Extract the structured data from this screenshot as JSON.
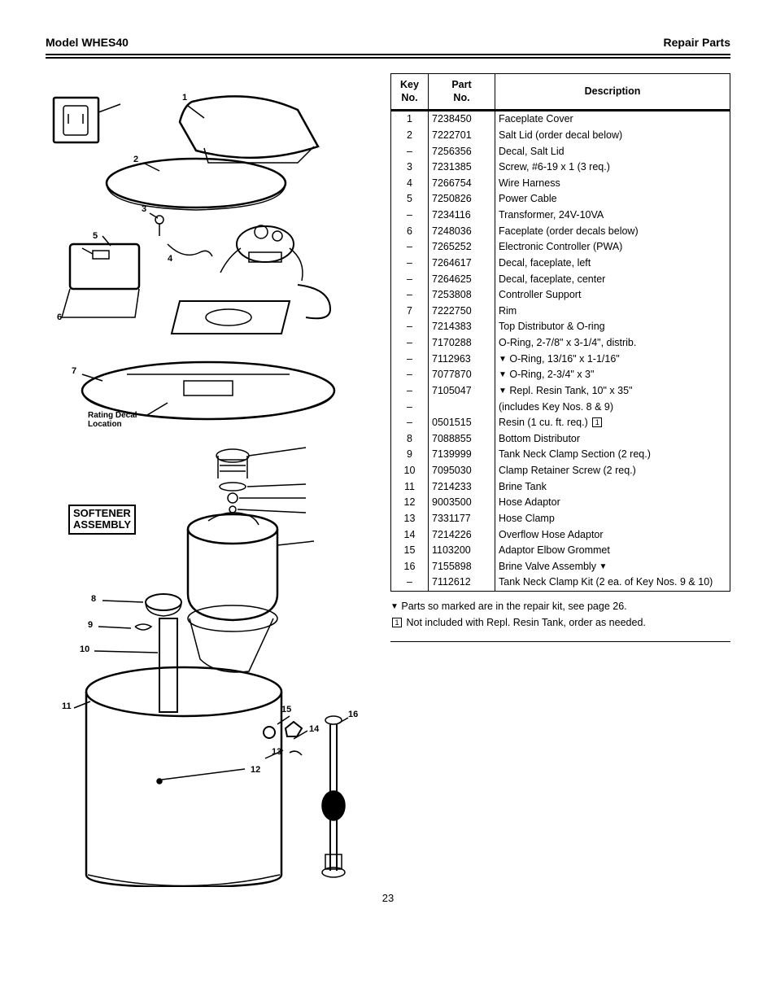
{
  "header": {
    "model": "Model WHES40",
    "title": "Repair Parts"
  },
  "diagram": {
    "softener_label_l1": "SOFTENER",
    "softener_label_l2": "ASSEMBLY",
    "rating_label_l1": "Rating Decal",
    "rating_label_l2": "Location",
    "callouts": {
      "n1": "1",
      "n2": "2",
      "n3": "3",
      "n4": "4",
      "n5": "5",
      "n6": "6",
      "n7": "7",
      "n8": "8",
      "n9": "9",
      "n10": "10",
      "n11": "11",
      "n12": "12",
      "n13": "13",
      "n14": "14",
      "n15": "15",
      "n16": "16"
    }
  },
  "table": {
    "headers": {
      "key": "Key\nNo.",
      "part": "Part\nNo.",
      "desc": "Description"
    },
    "rows": [
      {
        "key": "1",
        "part": "7238450",
        "desc": "Faceplate Cover"
      },
      {
        "key": "2",
        "part": "7222701",
        "desc": "Salt Lid (order decal below)"
      },
      {
        "key": "–",
        "part": "7256356",
        "desc": "Decal, Salt Lid"
      },
      {
        "key": "3",
        "part": "7231385",
        "desc": "Screw, #6-19 x 1 (3 req.)"
      },
      {
        "key": "4",
        "part": "7266754",
        "desc": "Wire Harness"
      },
      {
        "key": "5",
        "part": "7250826",
        "desc": "Power Cable"
      },
      {
        "key": "–",
        "part": "7234116",
        "desc": "Transformer, 24V-10VA"
      },
      {
        "key": "6",
        "part": "7248036",
        "desc": "Faceplate (order decals below)"
      },
      {
        "key": "–",
        "part": "7265252",
        "desc": "Electronic Controller (PWA)"
      },
      {
        "key": "–",
        "part": "7264617",
        "desc": "Decal, faceplate, left"
      },
      {
        "key": "–",
        "part": "7264625",
        "desc": "Decal, faceplate, center"
      },
      {
        "key": "–",
        "part": "7253808",
        "desc": "Controller Support"
      },
      {
        "key": "7",
        "part": "7222750",
        "desc": "Rim"
      },
      {
        "key": "–",
        "part": "7214383",
        "desc": "Top Distributor & O-ring"
      },
      {
        "key": "–",
        "part": "7170288",
        "desc": "O-Ring, 2-7/8\" x 3-1/4\", distrib."
      },
      {
        "key": "–",
        "part": "7112963",
        "desc": "⬛ O-Ring, 13/16\" x 1-1/16\""
      },
      {
        "key": "–",
        "part": "7077870",
        "desc": "⬛ O-Ring, 2-3/4\" x 3\""
      },
      {
        "key": "–",
        "part": "7105047",
        "desc": "⬛ Repl. Resin Tank, 10\" x 35\""
      },
      {
        "key": "–",
        "part": "",
        "desc": "(includes Key Nos. 8 & 9)"
      },
      {
        "key": "–",
        "part": "0501515",
        "desc": "Resin (1 cu. ft. req.) [1]"
      },
      {
        "key": "8",
        "part": "7088855",
        "desc": "Bottom Distributor"
      },
      {
        "key": "9",
        "part": "7139999",
        "desc": "Tank Neck Clamp Section (2 req.)"
      },
      {
        "key": "10",
        "part": "7095030",
        "desc": "Clamp Retainer Screw (2 req.)"
      },
      {
        "key": "11",
        "part": "7214233",
        "desc": "Brine Tank"
      },
      {
        "key": "12",
        "part": "9003500",
        "desc": "Hose Adaptor"
      },
      {
        "key": "13",
        "part": "7331177",
        "desc": "Hose Clamp"
      },
      {
        "key": "14",
        "part": "7214226",
        "desc": "Overflow Hose Adaptor"
      },
      {
        "key": "15",
        "part": "1103200",
        "desc": "Adaptor Elbow Grommet"
      },
      {
        "key": "16",
        "part": "7155898",
        "desc": "Brine Valve Assembly ⬛"
      },
      {
        "key": "–",
        "part": "7112612",
        "desc": "Tank Neck Clamp Kit (2 ea. of Key Nos. 9 & 10)"
      }
    ]
  },
  "notes": {
    "n1_symbol": "⬛",
    "n1_text": "Parts so marked are in the repair kit, see page 26.",
    "n2_symbol": "1",
    "n2_text": "Not included with Repl. Resin Tank, order as needed."
  },
  "page_number": "23"
}
